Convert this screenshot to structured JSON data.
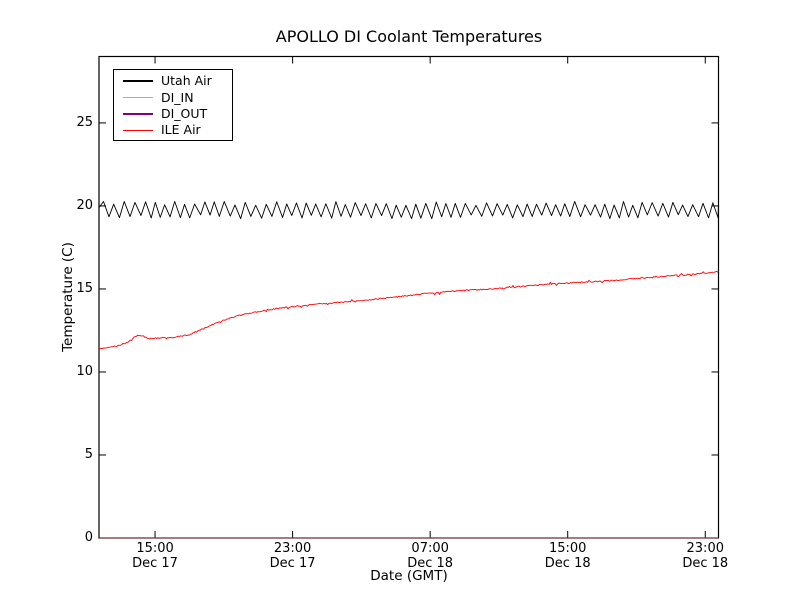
{
  "chart_data": {
    "type": "line",
    "title": "APOLLO DI Coolant Temperatures",
    "xlabel": "Date (GMT)",
    "ylabel": "Temperature (C)",
    "grid": false,
    "legend_position": "upper left",
    "x_domain_hours": [
      11.74,
      47.77
    ],
    "ylim": [
      0,
      29
    ],
    "yticks": [
      0,
      5,
      10,
      15,
      20,
      25
    ],
    "xticks": [
      {
        "hours": 15,
        "time": "15:00",
        "date": "Dec 17"
      },
      {
        "hours": 23,
        "time": "23:00",
        "date": "Dec 17"
      },
      {
        "hours": 31,
        "time": "07:00",
        "date": "Dec 18"
      },
      {
        "hours": 39,
        "time": "15:00",
        "date": "Dec 18"
      },
      {
        "hours": 47,
        "time": "23:00",
        "date": "Dec 18"
      }
    ],
    "noise_seed": 987654321,
    "series": [
      {
        "name": "Utah Air",
        "color": "#000000",
        "type": "sawtooth",
        "width": 0.9,
        "start": 19.9,
        "peak": 20.15,
        "trough": 19.35,
        "period_hours": 0.58,
        "jitter": 0.12
      },
      {
        "name": "DI_IN",
        "color": "#ffa500",
        "type": "flat",
        "value": 0,
        "width": 1,
        "opacity": 0.45
      },
      {
        "name": "DI_OUT",
        "color": "#800080",
        "type": "flat",
        "value": 0,
        "width": 1,
        "opacity": 0.4
      },
      {
        "name": "ILE Air",
        "color": "#ff0000",
        "type": "anchors",
        "width": 0.9,
        "noise": 0.07,
        "spike": 0.22,
        "anchors": [
          [
            11.74,
            11.4
          ],
          [
            12.4,
            11.5
          ],
          [
            13.0,
            11.62
          ],
          [
            13.5,
            11.85
          ],
          [
            13.84,
            12.15
          ],
          [
            14.1,
            12.22
          ],
          [
            14.6,
            12.02
          ],
          [
            15.3,
            12.05
          ],
          [
            16.2,
            12.1
          ],
          [
            17.0,
            12.25
          ],
          [
            17.9,
            12.65
          ],
          [
            18.8,
            13.05
          ],
          [
            19.7,
            13.35
          ],
          [
            20.8,
            13.6
          ],
          [
            22.3,
            13.85
          ],
          [
            24.0,
            14.05
          ],
          [
            25.8,
            14.2
          ],
          [
            27.5,
            14.35
          ],
          [
            29.3,
            14.55
          ],
          [
            31.0,
            14.75
          ],
          [
            32.8,
            14.9
          ],
          [
            34.5,
            15.0
          ],
          [
            36.3,
            15.15
          ],
          [
            38.0,
            15.3
          ],
          [
            39.8,
            15.4
          ],
          [
            41.5,
            15.5
          ],
          [
            43.3,
            15.65
          ],
          [
            45.0,
            15.8
          ],
          [
            46.5,
            15.9
          ],
          [
            47.77,
            16.05
          ]
        ]
      }
    ]
  },
  "legend": {
    "items": [
      {
        "label": "Utah Air",
        "color": "#000000"
      },
      {
        "label": "DI_IN",
        "color": "#ffa500"
      },
      {
        "label": "DI_OUT",
        "color": "#800080"
      },
      {
        "label": "ILE Air",
        "color": "#ff0000"
      }
    ]
  }
}
